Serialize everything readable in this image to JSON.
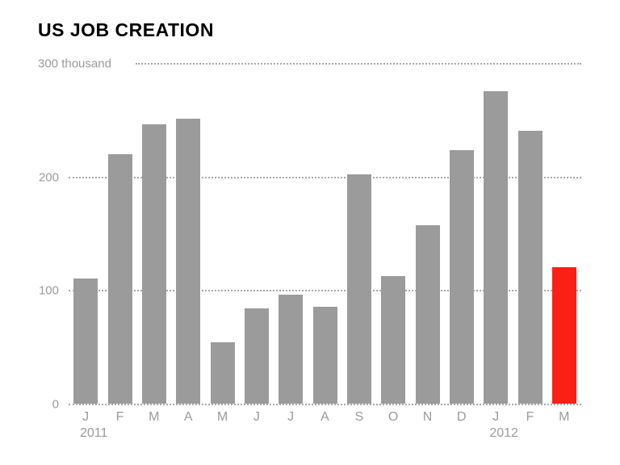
{
  "title": "US JOB CREATION",
  "chart_data": {
    "type": "bar",
    "title": "US JOB CREATION",
    "unit_label": "300 thousand",
    "categories": [
      "J",
      "F",
      "M",
      "A",
      "M",
      "J",
      "J",
      "A",
      "S",
      "O",
      "N",
      "D",
      "J",
      "F",
      "M"
    ],
    "values": [
      110,
      220,
      246,
      251,
      54,
      84,
      96,
      85,
      202,
      112,
      157,
      223,
      275,
      240,
      120
    ],
    "year_labels": [
      {
        "index": 0,
        "label": "2011"
      },
      {
        "index": 12,
        "label": "2012"
      }
    ],
    "xlabel": "",
    "ylabel": "thousand",
    "ylim": [
      0,
      300
    ],
    "yticks": [
      0,
      100,
      200,
      300
    ],
    "grid": "dotted horizontal",
    "legend": "none",
    "bar_color": "#9b9b9b",
    "highlight_index": 14,
    "highlight_color": "#fb2016"
  }
}
